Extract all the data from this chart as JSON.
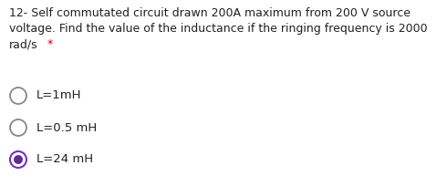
{
  "background_color": "#ffffff",
  "question_text_lines": [
    "12- Self commutated circuit drawn 200A maximum from 200 V source",
    "voltage. Find the value of the inductance if the ringing frequency is 2000",
    "rad/s"
  ],
  "asterisk": " *",
  "asterisk_color": "#cc0000",
  "question_font_size": 9.0,
  "options": [
    {
      "label": "L=1mH",
      "selected": false
    },
    {
      "label": "L=0.5 mH",
      "selected": false
    },
    {
      "label": "L=24 mH",
      "selected": true
    }
  ],
  "option_font_size": 9.5,
  "text_color": "#212121",
  "circle_edge_color": "#888888",
  "selected_outer_color": "#7b2fbe",
  "selected_inner_color": "#5c2d91",
  "fig_width": 4.9,
  "fig_height": 2.04,
  "dpi": 100
}
